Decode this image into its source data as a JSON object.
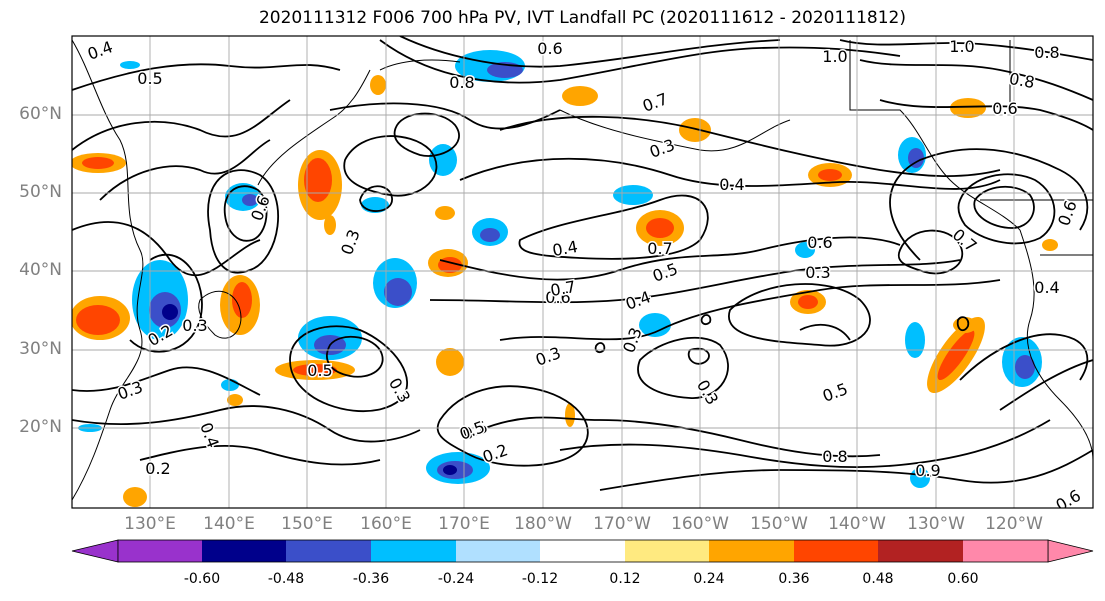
{
  "title": "2020111312 F006 700 hPa PV, IVT Landfall PC (2020111612 - 2020111812)",
  "latitude_labels": [
    "60°N",
    "50°N",
    "40°N",
    "30°N",
    "20°N"
  ],
  "longitude_labels": [
    "130°E",
    "140°E",
    "150°E",
    "160°E",
    "170°E",
    "180°W",
    "170°W",
    "160°W",
    "150°W",
    "140°W",
    "130°W",
    "120°W"
  ],
  "colorbar": {
    "colors": [
      "#9932cc",
      "#00008b",
      "#3b4fc9",
      "#00bfff",
      "#b0e0ff",
      "#ffffff",
      "#ffea80",
      "#ffa500",
      "#ff4500",
      "#b22222",
      "#ff88aa"
    ],
    "tick_labels": [
      "-0.60",
      "-0.48",
      "-0.36",
      "-0.24",
      "-0.12",
      "0.12",
      "0.24",
      "0.36",
      "0.48",
      "0.60"
    ]
  },
  "contour_labels": [
    "0.4",
    "0.5",
    "0.6",
    "0.8",
    "1.0",
    "1.0",
    "0.8",
    "0.8",
    "0.6",
    "0.7",
    "0.3",
    "0.4",
    "0.4",
    "0.7",
    "0.5",
    "0.6",
    "0.7",
    "0.6",
    "0.3",
    "0.4",
    "0.3",
    "0.3",
    "0.5",
    "0.3",
    "0.3",
    "0.5",
    "0.2",
    "0.2",
    "0.3",
    "0.2",
    "0.4",
    "0.3",
    "0.6",
    "0.4",
    "0.5",
    "0.3",
    "0.5",
    "0.8",
    "0.9",
    "0.6",
    "0.6",
    "0.7"
  ],
  "icons": [
    "map-background",
    "shading",
    "contours",
    "coastlines",
    "gridlines"
  ]
}
